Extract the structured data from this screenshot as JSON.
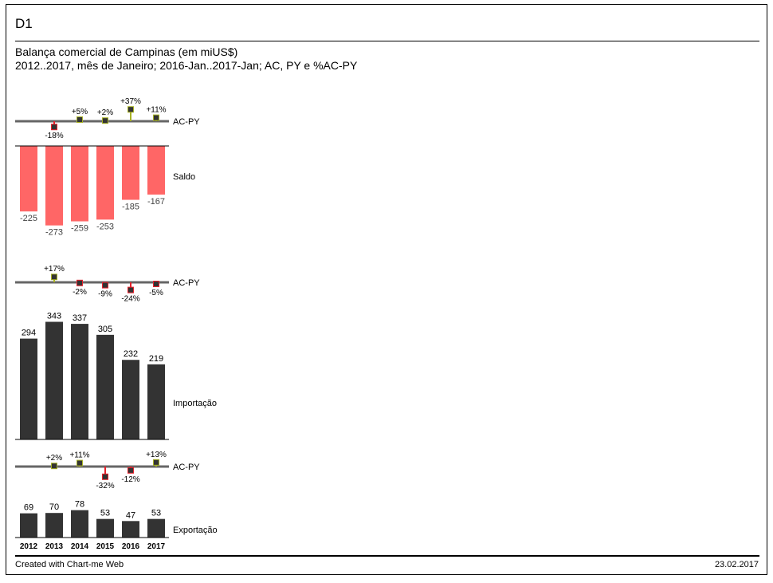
{
  "header": {
    "id": "D1"
  },
  "chart_title": "Balança comercial de Campinas (em miUS$)",
  "chart_subtitle": "2012..2017, mês de Janeiro; 2016-Jan..2017-Jan; AC, PY e %AC-PY",
  "footer": {
    "created_with": "Created with Chart-me Web",
    "date": "23.02.2017"
  },
  "colors": {
    "negative": "#ff6666",
    "dark": "#333333",
    "axis": "#666666",
    "good": "#a7b224",
    "bad": "#e8212b",
    "marker": "#333333"
  },
  "chart_data": [
    {
      "type": "bar",
      "name": "Saldo",
      "categories": [
        "2012",
        "2013",
        "2014",
        "2015",
        "2016",
        "2017"
      ],
      "values": [
        -225,
        -273,
        -259,
        -253,
        -185,
        -167
      ],
      "value_labels": [
        "-225",
        "-273",
        "-259",
        "-253",
        "-185",
        "-167"
      ],
      "variance": {
        "label": "AC-PY",
        "values": [
          null,
          -18,
          5,
          2,
          37,
          11
        ],
        "labels": [
          "",
          "-18%",
          "+5%",
          "+2%",
          "+37%",
          "+11%"
        ]
      }
    },
    {
      "type": "bar",
      "name": "Importação",
      "categories": [
        "2012",
        "2013",
        "2014",
        "2015",
        "2016",
        "2017"
      ],
      "values": [
        294,
        343,
        337,
        305,
        232,
        219
      ],
      "value_labels": [
        "294",
        "343",
        "337",
        "305",
        "232",
        "219"
      ],
      "variance": {
        "label": "AC-PY",
        "values": [
          null,
          17,
          -2,
          -9,
          -24,
          -5
        ],
        "labels": [
          "",
          "+17%",
          "-2%",
          "-9%",
          "-24%",
          "-5%"
        ]
      }
    },
    {
      "type": "bar",
      "name": "Exportação",
      "categories": [
        "2012",
        "2013",
        "2014",
        "2015",
        "2016",
        "2017"
      ],
      "values": [
        69,
        70,
        78,
        53,
        47,
        53
      ],
      "value_labels": [
        "69",
        "70",
        "78",
        "53",
        "47",
        "53"
      ],
      "variance": {
        "label": "AC-PY",
        "values": [
          null,
          2,
          11,
          -32,
          -12,
          13
        ],
        "labels": [
          "",
          "+2%",
          "+11%",
          "-32%",
          "-12%",
          "+13%"
        ]
      }
    }
  ]
}
